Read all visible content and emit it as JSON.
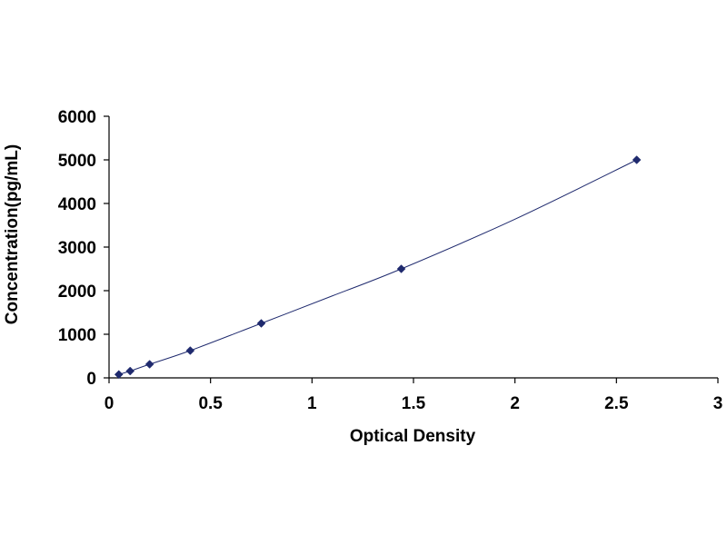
{
  "chart_data": {
    "type": "scatter",
    "title": "",
    "xlabel": "Optical Density",
    "ylabel": "Concentration(pg/mL)",
    "xlim": [
      0,
      3
    ],
    "ylim": [
      0,
      6000
    ],
    "xticks": [
      0,
      0.5,
      1,
      1.5,
      2,
      2.5,
      3
    ],
    "xtick_labels": [
      "0",
      "0.5",
      "1",
      "1.5",
      "2",
      "2.5",
      "3"
    ],
    "yticks": [
      0,
      1000,
      2000,
      3000,
      4000,
      5000,
      6000
    ],
    "ytick_labels": [
      "0",
      "1000",
      "2000",
      "3000",
      "4000",
      "5000",
      "6000"
    ],
    "grid": false,
    "legend": "none",
    "series": [
      {
        "marker": "diamond",
        "color": "#1f2a6e",
        "x": [
          0.048,
          0.104,
          0.2,
          0.4,
          0.75,
          1.44,
          2.6
        ],
        "y": [
          78,
          156,
          312,
          625,
          1250,
          2500,
          5000
        ]
      }
    ],
    "fit_curve": {
      "color": "#1f2a6e",
      "x": [
        0.048,
        0.104,
        0.2,
        0.4,
        0.75,
        1.1,
        1.44,
        2.0,
        2.6
      ],
      "y": [
        78,
        156,
        312,
        625,
        1250,
        1880,
        2500,
        3640,
        5000
      ]
    }
  }
}
